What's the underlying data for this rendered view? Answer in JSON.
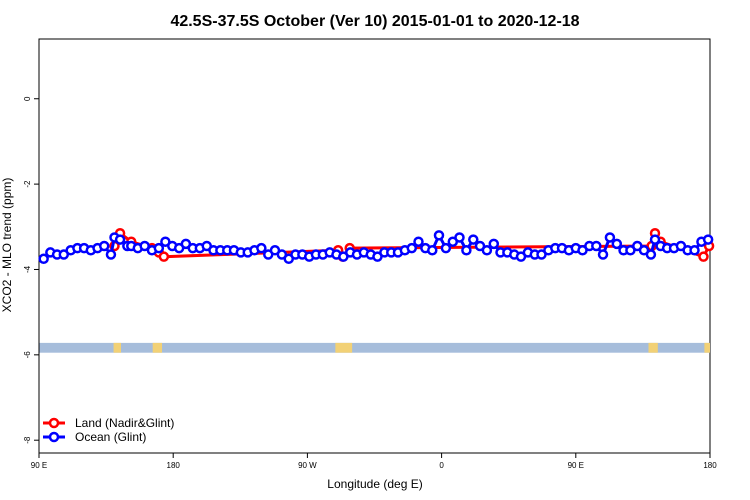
{
  "chart_data": {
    "type": "line",
    "title": "42.5S-37.5S October (Ver 10)   2015-01-01 to 2020-12-18",
    "xlabel": "Longitude (deg E)",
    "ylabel": "XCO2 - MLO trend (ppm)",
    "xlim": [
      90,
      450
    ],
    "ylim": [
      -8.3,
      1.4
    ],
    "x_ticks": [
      {
        "value": 90,
        "label": "90 E"
      },
      {
        "value": 162,
        "label": "180"
      },
      {
        "value": 234,
        "label": "90 W"
      },
      {
        "value": 306,
        "label": "0"
      },
      {
        "value": 378,
        "label": "90 E"
      },
      {
        "value": 450,
        "label": "180"
      }
    ],
    "y_ticks": [
      {
        "value": 0,
        "label": "0"
      },
      {
        "value": -2,
        "label": "-2"
      },
      {
        "value": -4,
        "label": "-4"
      },
      {
        "value": -6,
        "label": "-6"
      },
      {
        "value": -8,
        "label": "-8"
      }
    ],
    "colors": {
      "land": "#ff0000",
      "ocean": "#0000ff",
      "band_ocean": "#a6bddb",
      "band_land": "#f2d176"
    },
    "series": [
      {
        "name": "Land (Nadir&Glint)",
        "color": "#ff0000",
        "x": [
          130.5,
          133.5,
          139.5,
          150.6,
          154.3,
          157.0,
          250.5,
          253.0,
          256.7,
          418.7,
          420.5,
          423.5,
          446.5,
          449.5
        ],
        "y": [
          -3.45,
          -3.15,
          -3.35,
          -3.5,
          -3.6,
          -3.7,
          -3.55,
          -3.7,
          -3.5,
          -3.45,
          -3.15,
          -3.35,
          -3.7,
          -3.45
        ]
      },
      {
        "name": "Ocean (Glint)",
        "color": "#0000ff",
        "x": [
          92.5,
          96.1,
          99.7,
          103.3,
          107.0,
          110.6,
          114.2,
          117.8,
          121.4,
          125.0,
          128.6,
          130.5,
          133.5,
          137.4,
          139.5,
          143.0,
          146.7,
          150.6,
          154.3,
          157.8,
          161.5,
          165.2,
          168.8,
          172.5,
          176.3,
          180.0,
          183.6,
          187.3,
          191.0,
          194.6,
          198.3,
          202.0,
          205.6,
          209.3,
          213.0,
          216.6,
          220.3,
          224.0,
          227.6,
          231.3,
          235.0,
          238.6,
          242.3,
          246.0,
          249.6,
          253.3,
          257.0,
          260.6,
          264.3,
          268.0,
          271.6,
          275.3,
          279.0,
          282.6,
          286.3,
          290.0,
          293.6,
          297.3,
          301.0,
          304.6,
          308.3,
          312.0,
          315.6,
          319.3,
          323.0,
          326.6,
          330.3,
          334.0,
          337.6,
          341.3,
          345.0,
          348.6,
          352.3,
          356.0,
          359.6,
          363.3,
          367.0,
          370.6,
          374.3,
          378.0,
          381.6,
          385.3,
          389.0,
          392.6,
          396.3,
          400.0,
          403.6,
          407.3,
          411.0,
          414.6,
          418.3,
          420.5,
          423.5,
          427.0,
          430.7,
          434.4,
          438.0,
          441.7,
          445.4,
          449.0
        ],
        "y": [
          -3.75,
          -3.6,
          -3.65,
          -3.65,
          -3.55,
          -3.5,
          -3.5,
          -3.55,
          -3.5,
          -3.45,
          -3.65,
          -3.25,
          -3.3,
          -3.45,
          -3.45,
          -3.5,
          -3.45,
          -3.55,
          -3.5,
          -3.35,
          -3.45,
          -3.5,
          -3.4,
          -3.5,
          -3.5,
          -3.45,
          -3.55,
          -3.55,
          -3.55,
          -3.55,
          -3.6,
          -3.6,
          -3.55,
          -3.5,
          -3.65,
          -3.55,
          -3.65,
          -3.75,
          -3.65,
          -3.65,
          -3.7,
          -3.65,
          -3.65,
          -3.6,
          -3.65,
          -3.7,
          -3.6,
          -3.65,
          -3.6,
          -3.65,
          -3.7,
          -3.6,
          -3.6,
          -3.6,
          -3.55,
          -3.5,
          -3.35,
          -3.5,
          -3.55,
          -3.2,
          -3.5,
          -3.35,
          -3.25,
          -3.55,
          -3.3,
          -3.45,
          -3.55,
          -3.4,
          -3.6,
          -3.6,
          -3.65,
          -3.7,
          -3.6,
          -3.65,
          -3.65,
          -3.55,
          -3.5,
          -3.5,
          -3.55,
          -3.5,
          -3.55,
          -3.45,
          -3.45,
          -3.65,
          -3.25,
          -3.4,
          -3.55,
          -3.55,
          -3.45,
          -3.55,
          -3.65,
          -3.3,
          -3.45,
          -3.5,
          -3.5,
          -3.45,
          -3.55,
          -3.55,
          -3.35,
          -3.3
        ]
      }
    ],
    "surface_band": {
      "y_range": [
        -5.72,
        -5.95
      ],
      "land_segments": [
        [
          130.0,
          134.0
        ],
        [
          151.0,
          156.0
        ],
        [
          249.0,
          258.0
        ],
        [
          417.0,
          422.0
        ],
        [
          447.0,
          450.0
        ]
      ]
    },
    "legend": {
      "position": "bottom-left",
      "entries": [
        "Land (Nadir&Glint)",
        "Ocean (Glint)"
      ]
    },
    "grid": false
  }
}
